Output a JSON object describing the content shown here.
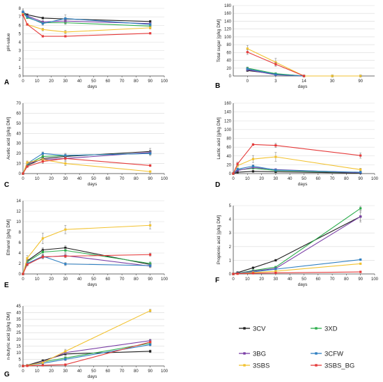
{
  "colors": {
    "3CV": "#1f1f1f",
    "3XD": "#2cad4c",
    "3BG": "#7b3fa6",
    "3CFW": "#2f7fc1",
    "3SBS": "#f2c230",
    "3SBS_BG": "#e53a3a",
    "grid": "#d9d9d9",
    "axis": "#444444"
  },
  "legend": {
    "items": [
      "3CV",
      "3XD",
      "3BG",
      "3CFW",
      "3SBS",
      "3SBS_BG"
    ]
  },
  "chart_data": [
    {
      "panel": "A",
      "type": "line",
      "ylabel": "pH-value",
      "xlabel": "days",
      "xaxis": "linear",
      "xlim": [
        0,
        100
      ],
      "xticks": [
        0,
        10,
        20,
        30,
        40,
        50,
        60,
        70,
        80,
        90,
        100
      ],
      "ylim": [
        0,
        8
      ],
      "yticks": [
        0,
        1,
        2,
        3,
        4,
        5,
        6,
        7,
        8
      ],
      "grid": true,
      "x": [
        0,
        3,
        14,
        30,
        90
      ],
      "series": [
        {
          "name": "3CV",
          "values": [
            7.55,
            7.25,
            6.85,
            6.75,
            6.45
          ],
          "err": [
            0.05,
            0.1,
            0.1,
            0.1,
            0.1
          ]
        },
        {
          "name": "3XD",
          "values": [
            7.5,
            6.9,
            6.3,
            6.3,
            5.9
          ],
          "err": [
            0.05,
            0.1,
            0.2,
            0.2,
            0.15
          ]
        },
        {
          "name": "3BG",
          "values": [
            7.55,
            7.1,
            6.4,
            6.5,
            6.2
          ],
          "err": [
            0.05,
            0.1,
            0.15,
            0.2,
            0.15
          ]
        },
        {
          "name": "3CFW",
          "values": [
            7.6,
            7.0,
            6.2,
            6.8,
            6.1
          ],
          "err": [
            0.05,
            0.1,
            0.2,
            0.45,
            0.15
          ]
        },
        {
          "name": "3SBS",
          "values": [
            7.3,
            6.1,
            5.5,
            5.2,
            5.7
          ],
          "err": [
            0.05,
            0.1,
            0.15,
            0.2,
            0.15
          ]
        },
        {
          "name": "3SBS_BG",
          "values": [
            7.2,
            6.1,
            4.7,
            4.7,
            5.05
          ],
          "err": [
            0.05,
            0.1,
            0.05,
            0.05,
            0.05
          ]
        }
      ]
    },
    {
      "panel": "B",
      "type": "line",
      "ylabel": "Total sugar [g/kg DM]",
      "xlabel": "days",
      "xaxis": "category",
      "categories": [
        "0",
        "3",
        "14",
        "30",
        "90"
      ],
      "ylim": [
        0,
        180
      ],
      "yticks": [
        0,
        20,
        40,
        60,
        80,
        100,
        120,
        140,
        160,
        180
      ],
      "grid": true,
      "series": [
        {
          "name": "3CV",
          "values": [
            14,
            5,
            0,
            0,
            0
          ],
          "err": [
            2,
            1,
            0,
            0,
            0
          ]
        },
        {
          "name": "3XD",
          "values": [
            20,
            6,
            0,
            0,
            0
          ],
          "err": [
            3,
            1,
            0,
            0,
            0
          ]
        },
        {
          "name": "3BG",
          "values": [
            16,
            3,
            0,
            0,
            0
          ],
          "err": [
            2,
            1,
            0,
            0,
            0
          ]
        },
        {
          "name": "3CFW",
          "values": [
            18,
            4,
            0,
            0,
            0
          ],
          "err": [
            3,
            1,
            0,
            0,
            0
          ]
        },
        {
          "name": "3SBS",
          "values": [
            70,
            35,
            0,
            0,
            0
          ],
          "err": [
            8,
            10,
            0,
            0,
            0
          ]
        },
        {
          "name": "3SBS_BG",
          "values": [
            61,
            30,
            0,
            null,
            null
          ],
          "err": [
            6,
            5,
            0,
            0,
            0
          ],
          "markers_only_after": 2
        }
      ]
    },
    {
      "panel": "C",
      "type": "line",
      "ylabel": "Acetic acid [g/kg DM]",
      "xlabel": "days",
      "xaxis": "linear",
      "xlim": [
        0,
        100
      ],
      "xticks": [
        0,
        10,
        20,
        30,
        40,
        50,
        60,
        70,
        80,
        90,
        100
      ],
      "ylim": [
        0,
        70
      ],
      "yticks": [
        0,
        10,
        20,
        30,
        40,
        50,
        60,
        70
      ],
      "grid": true,
      "x": [
        0,
        3,
        14,
        30,
        90
      ],
      "series": [
        {
          "name": "3CV",
          "values": [
            0,
            8,
            15,
            17,
            22
          ],
          "err": [
            0,
            1,
            2,
            2,
            3
          ]
        },
        {
          "name": "3XD",
          "values": [
            0,
            9,
            17,
            18,
            20
          ],
          "err": [
            0,
            1,
            2,
            2,
            2
          ]
        },
        {
          "name": "3BG",
          "values": [
            0,
            10,
            14,
            15,
            21
          ],
          "err": [
            0,
            1,
            2,
            2,
            2
          ]
        },
        {
          "name": "3CFW",
          "values": [
            0,
            10,
            20,
            18,
            20
          ],
          "err": [
            0,
            1,
            1.5,
            2,
            2
          ]
        },
        {
          "name": "3SBS",
          "values": [
            0,
            11,
            14,
            10,
            2
          ],
          "err": [
            0,
            1.5,
            2,
            2,
            0.5
          ]
        },
        {
          "name": "3SBS_BG",
          "values": [
            0,
            7,
            12,
            15,
            8
          ],
          "err": [
            0,
            1,
            2,
            2,
            1
          ]
        }
      ]
    },
    {
      "panel": "D",
      "type": "line",
      "ylabel": "Lactic acid [g/kg DM]",
      "xlabel": "days",
      "xaxis": "linear",
      "xlim": [
        0,
        100
      ],
      "xticks": [
        0,
        10,
        20,
        30,
        40,
        50,
        60,
        70,
        80,
        90,
        100
      ],
      "ylim": [
        0,
        160
      ],
      "yticks": [
        0,
        20,
        40,
        60,
        80,
        100,
        120,
        140,
        160
      ],
      "grid": true,
      "x": [
        0,
        3,
        14,
        30,
        90
      ],
      "series": [
        {
          "name": "3CV",
          "values": [
            0,
            3,
            5,
            4,
            1
          ],
          "err": [
            0,
            1,
            1,
            1,
            0.5
          ]
        },
        {
          "name": "3XD",
          "values": [
            0,
            8,
            12,
            7,
            2
          ],
          "err": [
            0,
            2,
            2,
            2,
            1
          ]
        },
        {
          "name": "3BG",
          "values": [
            0,
            7,
            14,
            9,
            2
          ],
          "err": [
            0,
            2,
            2,
            2,
            1
          ]
        },
        {
          "name": "3CFW",
          "values": [
            0,
            10,
            17,
            8,
            3
          ],
          "err": [
            0,
            2,
            3,
            2,
            1
          ]
        },
        {
          "name": "3SBS",
          "values": [
            0,
            18,
            33,
            38,
            9
          ],
          "err": [
            0,
            4,
            8,
            10,
            3
          ]
        },
        {
          "name": "3SBS_BG",
          "values": [
            0,
            22,
            66,
            64,
            41
          ],
          "err": [
            0,
            4,
            2,
            5,
            6
          ]
        }
      ]
    },
    {
      "panel": "E",
      "type": "line",
      "ylabel": "Ethanol [g/kg DM]",
      "xlabel": "days",
      "xaxis": "linear",
      "xlim": [
        0,
        100
      ],
      "xticks": [
        0,
        10,
        20,
        30,
        40,
        50,
        60,
        70,
        80,
        90,
        100
      ],
      "ylim": [
        0,
        14
      ],
      "yticks": [
        0,
        2,
        4,
        6,
        8,
        10,
        12,
        14
      ],
      "grid": true,
      "x": [
        0,
        3,
        14,
        30,
        90
      ],
      "series": [
        {
          "name": "3CV",
          "values": [
            0,
            2.5,
            4.6,
            5.0,
            1.8
          ],
          "err": [
            0,
            0.3,
            0.4,
            0.4,
            0.3
          ]
        },
        {
          "name": "3XD",
          "values": [
            0,
            2.3,
            4.2,
            4.5,
            2.0
          ],
          "err": [
            0,
            0.3,
            0.4,
            0.4,
            0.3
          ]
        },
        {
          "name": "3BG",
          "values": [
            0,
            2.0,
            3.2,
            3.5,
            1.5
          ],
          "err": [
            0,
            0.3,
            0.3,
            0.4,
            0.3
          ]
        },
        {
          "name": "3CFW",
          "values": [
            0,
            2.0,
            3.4,
            1.9,
            1.6
          ],
          "err": [
            0,
            0.3,
            0.3,
            0.3,
            0.3
          ]
        },
        {
          "name": "3SBS",
          "values": [
            0,
            3.0,
            6.8,
            8.5,
            9.3
          ],
          "err": [
            0,
            0.5,
            1.0,
            0.8,
            0.7
          ]
        },
        {
          "name": "3SBS_BG",
          "values": [
            0,
            1.8,
            3.3,
            3.4,
            3.7
          ],
          "err": [
            0,
            0.3,
            0.3,
            0.3,
            0.3
          ]
        }
      ]
    },
    {
      "panel": "F",
      "type": "line",
      "ylabel": "Propionic acid [g/kg DM]",
      "xlabel": "days",
      "xaxis": "linear",
      "xlim": [
        0,
        100
      ],
      "xticks": [
        0,
        10,
        20,
        30,
        40,
        50,
        60,
        70,
        80,
        90,
        100
      ],
      "ylim": [
        0,
        5
      ],
      "yticks": [
        0,
        1,
        2,
        3,
        4,
        5
      ],
      "grid": true,
      "x": [
        0,
        3,
        14,
        30,
        90
      ],
      "series": [
        {
          "name": "3CV",
          "values": [
            0,
            0.1,
            0.45,
            1.0,
            4.2
          ],
          "err": [
            0,
            0.02,
            0.05,
            0.05,
            0.3
          ]
        },
        {
          "name": "3XD",
          "values": [
            0,
            0.05,
            0.25,
            0.5,
            4.8
          ],
          "err": [
            0,
            0.02,
            0.05,
            0.05,
            0.15
          ]
        },
        {
          "name": "3BG",
          "values": [
            0,
            0.05,
            0.2,
            0.4,
            4.2
          ],
          "err": [
            0,
            0.02,
            0.05,
            0.05,
            0.4
          ]
        },
        {
          "name": "3CFW",
          "values": [
            0,
            0.05,
            0.15,
            0.35,
            1.05
          ],
          "err": [
            0,
            0.02,
            0.03,
            0.05,
            0.05
          ]
        },
        {
          "name": "3SBS",
          "values": [
            0,
            0.02,
            0.1,
            0.2,
            0.75
          ],
          "err": [
            0,
            0.01,
            0.02,
            0.03,
            0.05
          ]
        },
        {
          "name": "3SBS_BG",
          "values": [
            0,
            0.02,
            0.05,
            0.08,
            0.15
          ],
          "err": [
            0,
            0.01,
            0.01,
            0.02,
            0.02
          ]
        }
      ]
    },
    {
      "panel": "G",
      "type": "line",
      "ylabel": "n-butyric acid [g/kg DM]",
      "xlabel": "days",
      "xaxis": "linear",
      "xlim": [
        0,
        100
      ],
      "xticks": [
        0,
        10,
        20,
        30,
        40,
        50,
        60,
        70,
        80,
        90,
        100
      ],
      "ylim": [
        0,
        45
      ],
      "yticks": [
        0,
        5,
        10,
        15,
        20,
        25,
        30,
        35,
        40,
        45
      ],
      "grid": true,
      "x": [
        0,
        3,
        14,
        30,
        90
      ],
      "series": [
        {
          "name": "3CV",
          "values": [
            0,
            0.5,
            4,
            9,
            11
          ],
          "err": [
            0,
            0.2,
            0.6,
            1,
            1
          ]
        },
        {
          "name": "3XD",
          "values": [
            0,
            0.3,
            3,
            6,
            17
          ],
          "err": [
            0,
            0.2,
            0.5,
            1,
            1
          ]
        },
        {
          "name": "3BG",
          "values": [
            0,
            0.3,
            3,
            10,
            19
          ],
          "err": [
            0,
            0.2,
            0.5,
            1,
            1.2
          ]
        },
        {
          "name": "3CFW",
          "values": [
            0,
            0.3,
            2,
            5,
            16
          ],
          "err": [
            0,
            0.2,
            0.4,
            1,
            1
          ]
        },
        {
          "name": "3SBS",
          "values": [
            0,
            0.3,
            2.5,
            11,
            41.5
          ],
          "err": [
            0,
            0.2,
            0.5,
            1.5,
            1
          ]
        },
        {
          "name": "3SBS_BG",
          "values": [
            0,
            0.1,
            0.5,
            1,
            18
          ],
          "err": [
            0,
            0.1,
            0.2,
            0.3,
            1
          ]
        }
      ]
    }
  ]
}
